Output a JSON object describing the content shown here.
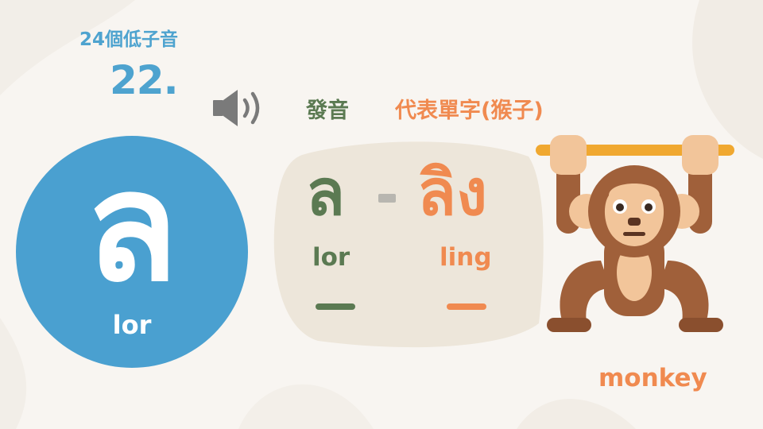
{
  "header": {
    "series": "24個低子音",
    "number": "22."
  },
  "columns": {
    "pronunciation": "發音",
    "word": "代表單字(猴子)"
  },
  "consonant": {
    "letter": "ล",
    "romanization": "lor"
  },
  "card": {
    "letter": "ล",
    "word": "ลิง",
    "letter_rom": "lor",
    "word_rom": "ling"
  },
  "picture": {
    "icon": "monkey-icon",
    "caption": "monkey"
  },
  "colors": {
    "blue": "#4aa0d0",
    "green": "#5b7a52",
    "orange": "#f08a50",
    "card": "#ede6da",
    "background": "#f8f5f1"
  }
}
